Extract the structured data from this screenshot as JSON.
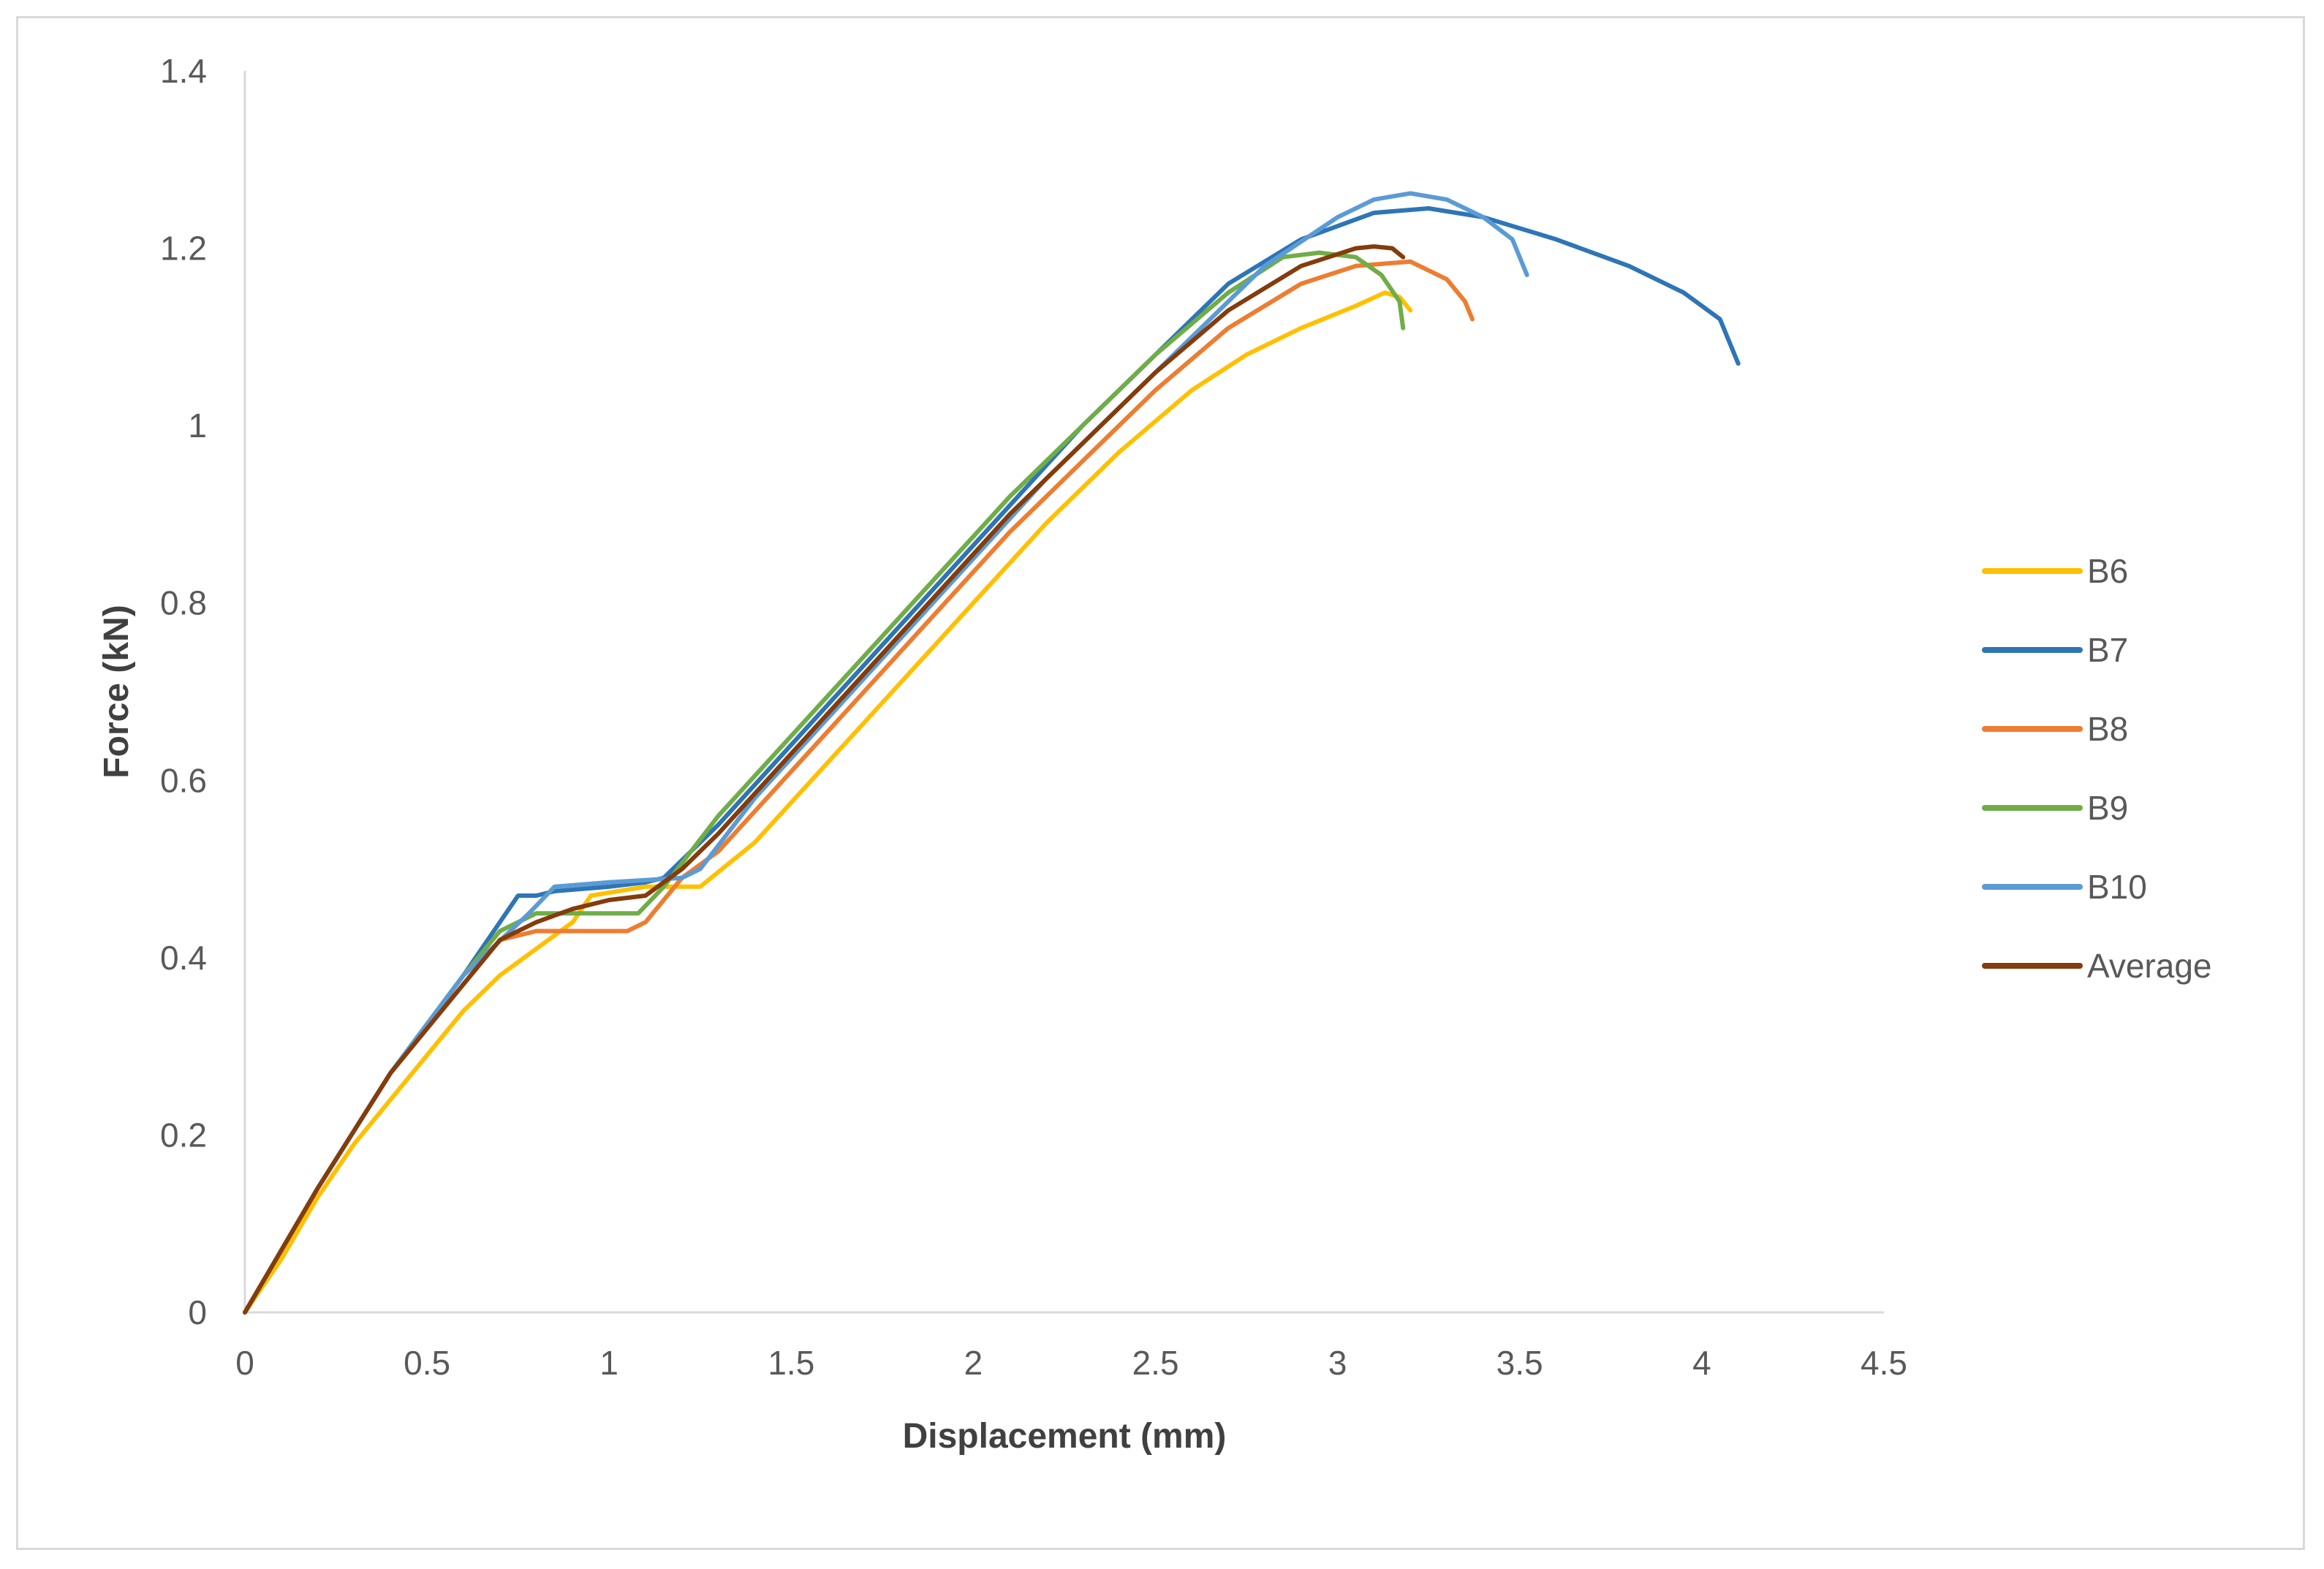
{
  "chart_data": {
    "type": "line",
    "title": "",
    "xlabel": "Displacement (mm)",
    "ylabel": "Force (kN)",
    "xlim": [
      0,
      4.5
    ],
    "ylim": [
      0,
      1.4
    ],
    "x_ticks": [
      "0",
      "0.5",
      "1",
      "1.5",
      "2",
      "2.5",
      "3",
      "3.5",
      "4",
      "4.5"
    ],
    "y_ticks": [
      "0",
      "0.2",
      "0.4",
      "0.6",
      "0.8",
      "1",
      "1.2",
      "1.4"
    ],
    "grid": false,
    "legend_position": "right",
    "series": [
      {
        "name": "B6",
        "color": "#FFC000",
        "points": [
          [
            0,
            0
          ],
          [
            0.1,
            0.06
          ],
          [
            0.2,
            0.13
          ],
          [
            0.3,
            0.19
          ],
          [
            0.4,
            0.24
          ],
          [
            0.5,
            0.29
          ],
          [
            0.6,
            0.34
          ],
          [
            0.7,
            0.38
          ],
          [
            0.8,
            0.41
          ],
          [
            0.9,
            0.44
          ],
          [
            0.95,
            0.47
          ],
          [
            1.1,
            0.48
          ],
          [
            1.2,
            0.48
          ],
          [
            1.25,
            0.48
          ],
          [
            1.4,
            0.53
          ],
          [
            1.6,
            0.62
          ],
          [
            1.8,
            0.71
          ],
          [
            2.0,
            0.8
          ],
          [
            2.2,
            0.89
          ],
          [
            2.4,
            0.97
          ],
          [
            2.6,
            1.04
          ],
          [
            2.75,
            1.08
          ],
          [
            2.9,
            1.11
          ],
          [
            3.05,
            1.135
          ],
          [
            3.13,
            1.15
          ],
          [
            3.17,
            1.145
          ],
          [
            3.2,
            1.13
          ]
        ]
      },
      {
        "name": "B7",
        "color": "#2E75B6",
        "points": [
          [
            0,
            0
          ],
          [
            0.2,
            0.14
          ],
          [
            0.4,
            0.27
          ],
          [
            0.6,
            0.38
          ],
          [
            0.75,
            0.47
          ],
          [
            0.8,
            0.47
          ],
          [
            0.85,
            0.475
          ],
          [
            1.0,
            0.48
          ],
          [
            1.1,
            0.485
          ],
          [
            1.15,
            0.49
          ],
          [
            1.3,
            0.55
          ],
          [
            1.5,
            0.64
          ],
          [
            1.7,
            0.73
          ],
          [
            1.9,
            0.82
          ],
          [
            2.1,
            0.91
          ],
          [
            2.3,
            1.0
          ],
          [
            2.5,
            1.08
          ],
          [
            2.7,
            1.16
          ],
          [
            2.9,
            1.21
          ],
          [
            3.1,
            1.24
          ],
          [
            3.25,
            1.245
          ],
          [
            3.4,
            1.235
          ],
          [
            3.6,
            1.21
          ],
          [
            3.8,
            1.18
          ],
          [
            3.95,
            1.15
          ],
          [
            4.05,
            1.12
          ],
          [
            4.1,
            1.07
          ]
        ]
      },
      {
        "name": "B8",
        "color": "#ED7D31",
        "points": [
          [
            0,
            0
          ],
          [
            0.2,
            0.14
          ],
          [
            0.4,
            0.27
          ],
          [
            0.6,
            0.37
          ],
          [
            0.7,
            0.42
          ],
          [
            0.8,
            0.43
          ],
          [
            0.9,
            0.43
          ],
          [
            1.0,
            0.43
          ],
          [
            1.05,
            0.43
          ],
          [
            1.1,
            0.44
          ],
          [
            1.2,
            0.49
          ],
          [
            1.3,
            0.52
          ],
          [
            1.5,
            0.61
          ],
          [
            1.7,
            0.7
          ],
          [
            1.9,
            0.79
          ],
          [
            2.1,
            0.88
          ],
          [
            2.3,
            0.96
          ],
          [
            2.5,
            1.04
          ],
          [
            2.7,
            1.11
          ],
          [
            2.9,
            1.16
          ],
          [
            3.05,
            1.18
          ],
          [
            3.2,
            1.185
          ],
          [
            3.3,
            1.165
          ],
          [
            3.35,
            1.14
          ],
          [
            3.37,
            1.12
          ]
        ]
      },
      {
        "name": "B9",
        "color": "#70AD47",
        "points": [
          [
            0,
            0
          ],
          [
            0.2,
            0.14
          ],
          [
            0.4,
            0.27
          ],
          [
            0.6,
            0.38
          ],
          [
            0.7,
            0.43
          ],
          [
            0.8,
            0.45
          ],
          [
            0.9,
            0.45
          ],
          [
            1.0,
            0.45
          ],
          [
            1.08,
            0.45
          ],
          [
            1.15,
            0.48
          ],
          [
            1.3,
            0.56
          ],
          [
            1.5,
            0.65
          ],
          [
            1.7,
            0.74
          ],
          [
            1.9,
            0.83
          ],
          [
            2.1,
            0.92
          ],
          [
            2.3,
            1.0
          ],
          [
            2.5,
            1.08
          ],
          [
            2.7,
            1.15
          ],
          [
            2.85,
            1.19
          ],
          [
            2.95,
            1.195
          ],
          [
            3.05,
            1.19
          ],
          [
            3.12,
            1.17
          ],
          [
            3.17,
            1.14
          ],
          [
            3.18,
            1.11
          ]
        ]
      },
      {
        "name": "B10",
        "color": "#5B9BD5",
        "points": [
          [
            0,
            0
          ],
          [
            0.2,
            0.14
          ],
          [
            0.4,
            0.27
          ],
          [
            0.6,
            0.38
          ],
          [
            0.78,
            0.45
          ],
          [
            0.85,
            0.48
          ],
          [
            1.0,
            0.485
          ],
          [
            1.2,
            0.49
          ],
          [
            1.25,
            0.5
          ],
          [
            1.4,
            0.58
          ],
          [
            1.6,
            0.67
          ],
          [
            1.8,
            0.76
          ],
          [
            2.0,
            0.85
          ],
          [
            2.2,
            0.94
          ],
          [
            2.4,
            1.02
          ],
          [
            2.6,
            1.1
          ],
          [
            2.8,
            1.18
          ],
          [
            3.0,
            1.235
          ],
          [
            3.1,
            1.255
          ],
          [
            3.2,
            1.262
          ],
          [
            3.3,
            1.255
          ],
          [
            3.4,
            1.235
          ],
          [
            3.48,
            1.21
          ],
          [
            3.52,
            1.17
          ]
        ]
      },
      {
        "name": "Average",
        "color": "#843C0C",
        "points": [
          [
            0,
            0
          ],
          [
            0.2,
            0.14
          ],
          [
            0.4,
            0.27
          ],
          [
            0.6,
            0.37
          ],
          [
            0.7,
            0.42
          ],
          [
            0.8,
            0.44
          ],
          [
            0.9,
            0.455
          ],
          [
            1.0,
            0.465
          ],
          [
            1.1,
            0.47
          ],
          [
            1.2,
            0.5
          ],
          [
            1.3,
            0.54
          ],
          [
            1.5,
            0.63
          ],
          [
            1.7,
            0.72
          ],
          [
            1.9,
            0.81
          ],
          [
            2.1,
            0.9
          ],
          [
            2.3,
            0.98
          ],
          [
            2.5,
            1.06
          ],
          [
            2.7,
            1.13
          ],
          [
            2.9,
            1.18
          ],
          [
            3.05,
            1.2
          ],
          [
            3.1,
            1.202
          ],
          [
            3.15,
            1.2
          ],
          [
            3.18,
            1.19
          ]
        ]
      }
    ]
  }
}
